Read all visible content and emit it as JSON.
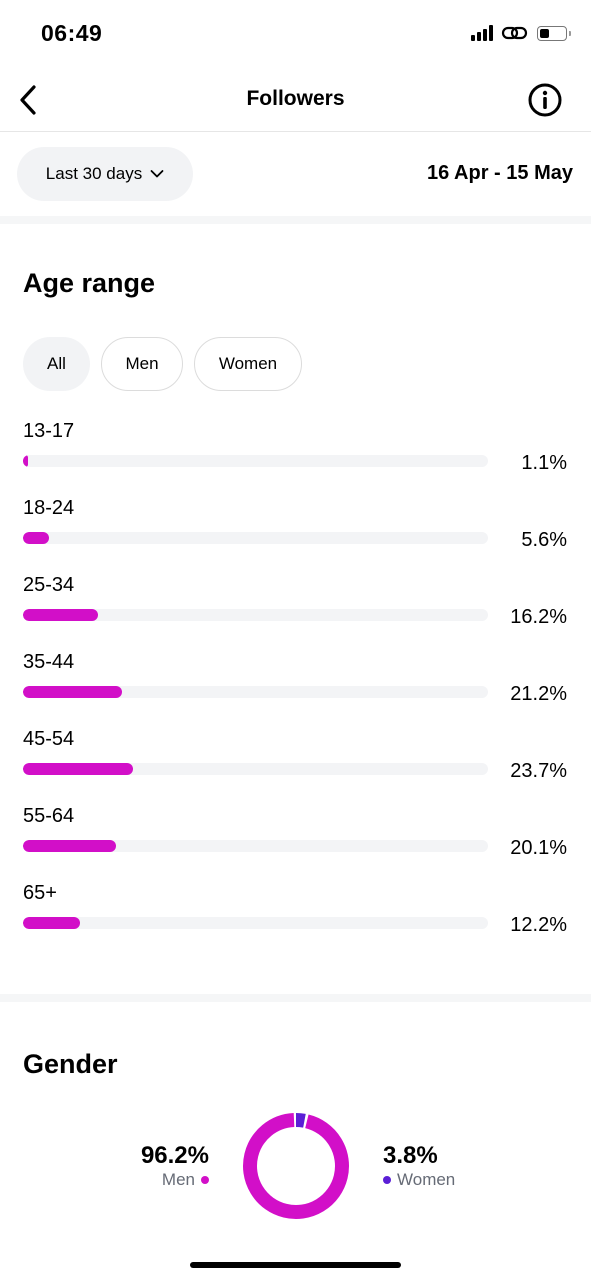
{
  "status_bar": {
    "time": "06:49"
  },
  "nav": {
    "title": "Followers"
  },
  "filter": {
    "range_label": "Last 30 days",
    "date_range": "16 Apr - 15 May"
  },
  "age_section": {
    "title": "Age range",
    "chips": [
      {
        "label": "All",
        "active": true
      },
      {
        "label": "Men",
        "active": false
      },
      {
        "label": "Women",
        "active": false
      }
    ],
    "rows": [
      {
        "range": "13-17",
        "value": 1.1,
        "label": "1.1%"
      },
      {
        "range": "18-24",
        "value": 5.6,
        "label": "5.6%"
      },
      {
        "range": "25-34",
        "value": 16.2,
        "label": "16.2%"
      },
      {
        "range": "35-44",
        "value": 21.2,
        "label": "21.2%"
      },
      {
        "range": "45-54",
        "value": 23.7,
        "label": "23.7%"
      },
      {
        "range": "55-64",
        "value": 20.1,
        "label": "20.1%"
      },
      {
        "range": "65+",
        "value": 12.2,
        "label": "12.2%"
      }
    ],
    "bar_max": 100
  },
  "gender_section": {
    "title": "Gender",
    "men": {
      "value": "96.2%",
      "label": "Men",
      "share": 96.2
    },
    "women": {
      "value": "3.8%",
      "label": "Women",
      "share": 3.8
    }
  },
  "colors": {
    "accent": "#d20fc8",
    "women": "#5b1fd6",
    "track": "#f3f4f6",
    "muted_text": "#666b76"
  }
}
